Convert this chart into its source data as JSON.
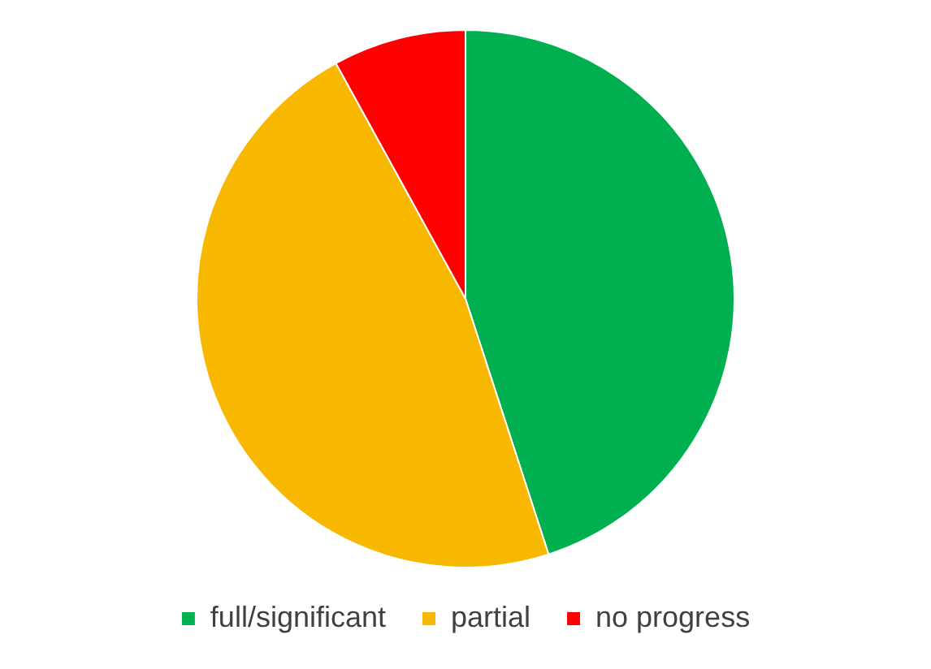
{
  "chart_data": {
    "type": "pie",
    "categories": [
      "full/significant",
      "partial",
      "no progress"
    ],
    "values": [
      45,
      47,
      8
    ],
    "colors": [
      "#00b050",
      "#f9b800",
      "#ff0000"
    ],
    "legend": "bottom"
  }
}
